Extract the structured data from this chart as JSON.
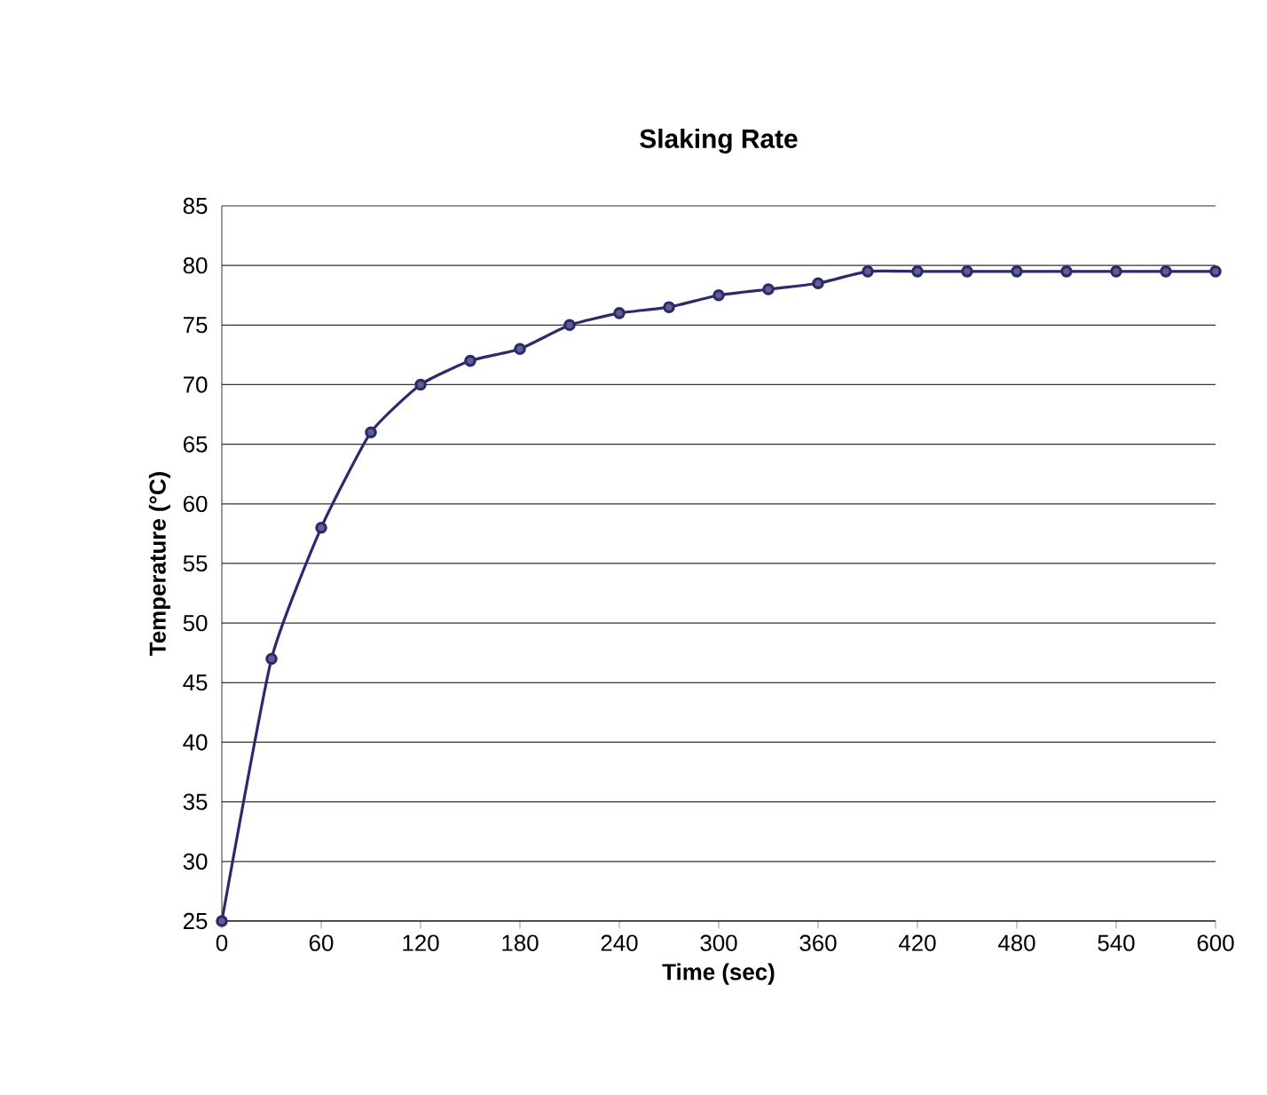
{
  "chart_data": {
    "type": "line",
    "title": "Slaking Rate",
    "xlabel": "Time (sec)",
    "ylabel": "Temperature (°C)",
    "x": [
      0,
      30,
      60,
      90,
      120,
      150,
      180,
      210,
      240,
      270,
      300,
      330,
      360,
      390,
      420,
      450,
      480,
      510,
      540,
      570,
      600
    ],
    "series": [
      {
        "color": "#2b2b6b",
        "values": [
          25,
          47,
          58,
          66,
          70,
          72,
          73,
          75,
          76,
          76.5,
          77.5,
          78,
          78.5,
          79.5,
          79.5,
          79.5,
          79.5,
          79.5,
          79.5,
          79.5,
          79.5
        ]
      }
    ],
    "xlim": [
      0,
      600
    ],
    "xticks": [
      0,
      60,
      120,
      180,
      240,
      300,
      360,
      420,
      480,
      540,
      600
    ],
    "ylim": [
      25,
      85
    ],
    "yticks": [
      25,
      30,
      35,
      40,
      45,
      50,
      55,
      60,
      65,
      70,
      75,
      80,
      85
    ],
    "grid": "y",
    "marker": "circle",
    "line_style": "solid"
  }
}
